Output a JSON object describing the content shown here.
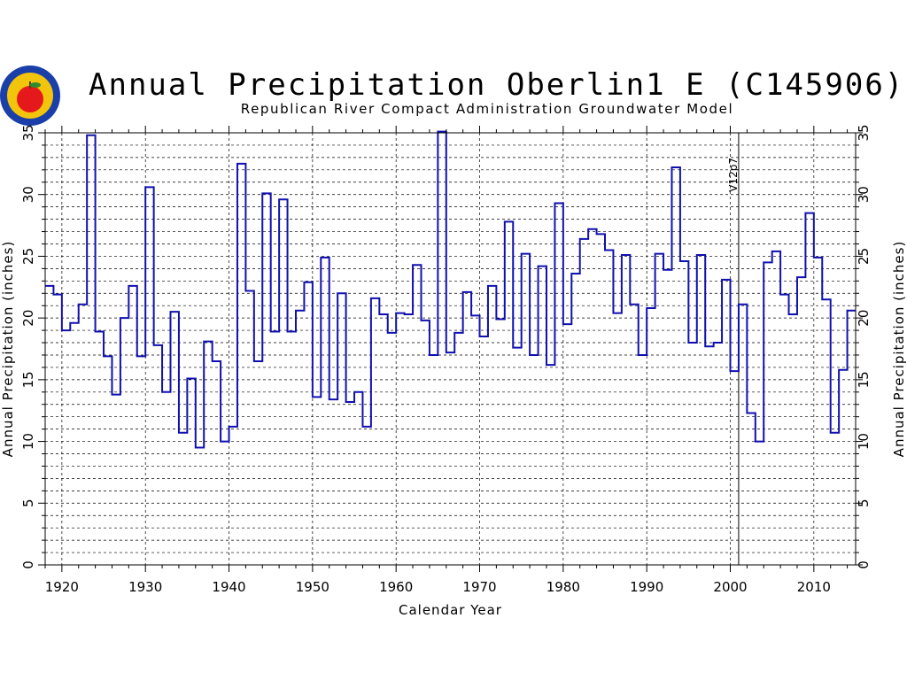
{
  "header": {
    "title": "Annual Precipitation Oberlin1 E (C145906)",
    "subtitle": "Republican River Compact Administration Groundwater Model"
  },
  "logo": {
    "icon": "rrca-apple-seal-icon",
    "colors": [
      "#1a3fa8",
      "#f2c40c",
      "#e5191b",
      "#2e8b2e"
    ]
  },
  "chart_data": {
    "type": "line",
    "step": true,
    "title": "Annual Precipitation Oberlin1 E (C145906)",
    "subtitle": "Republican River Compact Administration Groundwater Model",
    "xlabel": "Calendar Year",
    "ylabel": "Annual Precipitation (inches)",
    "ylabel_right": "Annual Precipitation (inches)",
    "xlim": [
      1918,
      2015
    ],
    "ylim": [
      0,
      35
    ],
    "x_ticks": [
      1920,
      1930,
      1940,
      1950,
      1960,
      1970,
      1980,
      1990,
      2000,
      2010
    ],
    "y_ticks": [
      0,
      5,
      10,
      15,
      20,
      25,
      30,
      35
    ],
    "grid": true,
    "series": [
      {
        "color": "#1010b0",
        "x": [
          1918,
          1919,
          1920,
          1921,
          1922,
          1923,
          1924,
          1925,
          1926,
          1927,
          1928,
          1929,
          1930,
          1931,
          1932,
          1933,
          1934,
          1935,
          1936,
          1937,
          1938,
          1939,
          1940,
          1941,
          1942,
          1943,
          1944,
          1945,
          1946,
          1947,
          1948,
          1949,
          1950,
          1951,
          1952,
          1953,
          1954,
          1955,
          1956,
          1957,
          1958,
          1959,
          1960,
          1961,
          1962,
          1963,
          1964,
          1965,
          1966,
          1967,
          1968,
          1969,
          1970,
          1971,
          1972,
          1973,
          1974,
          1975,
          1976,
          1977,
          1978,
          1979,
          1980,
          1981,
          1982,
          1983,
          1984,
          1985,
          1986,
          1987,
          1988,
          1989,
          1990,
          1991,
          1992,
          1993,
          1994,
          1995,
          1996,
          1997,
          1998,
          1999,
          2000,
          2001,
          2002,
          2003,
          2004,
          2005,
          2006,
          2007,
          2008,
          2009,
          2010,
          2011,
          2012,
          2013,
          2014
        ],
        "y": [
          22.6,
          21.9,
          19.0,
          19.6,
          21.1,
          34.8,
          18.9,
          16.9,
          13.8,
          20.0,
          22.6,
          16.9,
          30.6,
          17.8,
          14.0,
          20.5,
          10.7,
          15.1,
          9.5,
          18.1,
          16.5,
          10.0,
          11.2,
          32.5,
          22.2,
          16.5,
          30.1,
          18.9,
          29.6,
          18.9,
          20.6,
          22.9,
          13.6,
          24.9,
          13.4,
          22.0,
          13.2,
          14.0,
          11.2,
          21.6,
          20.3,
          18.8,
          20.4,
          20.3,
          24.3,
          19.8,
          17.0,
          35.1,
          17.2,
          18.8,
          22.1,
          20.2,
          18.5,
          22.6,
          19.9,
          27.8,
          17.6,
          25.2,
          17.0,
          24.2,
          16.2,
          29.3,
          19.5,
          23.6,
          26.4,
          27.2,
          26.8,
          25.5,
          20.4,
          25.1,
          21.1,
          17.0,
          20.8,
          25.2,
          23.9,
          32.2,
          24.6,
          18.0,
          25.1,
          17.7,
          18.0,
          23.1,
          15.7,
          21.1,
          12.3,
          10.0,
          24.5,
          25.4,
          21.9,
          20.3,
          23.3,
          28.5,
          24.9,
          21.5,
          10.7,
          15.8,
          20.6
        ]
      }
    ],
    "annotations": [
      {
        "text": "V12p7",
        "x": 2001
      }
    ]
  }
}
